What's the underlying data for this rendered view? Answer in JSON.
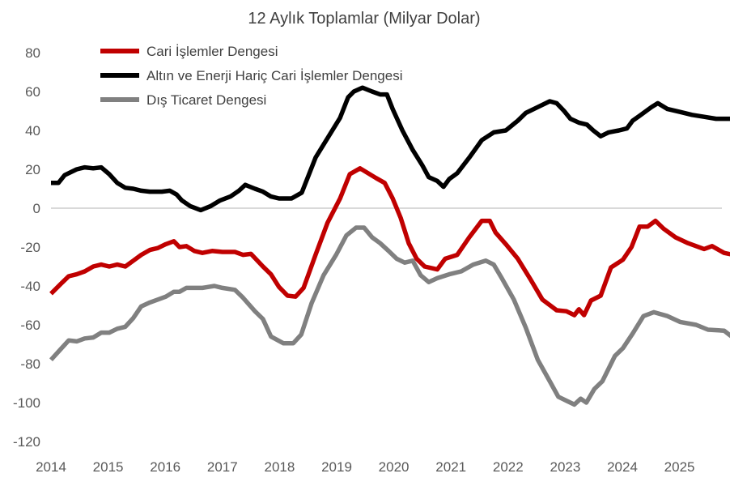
{
  "chart_data": {
    "type": "line",
    "title": "12 Aylık Toplamlar (Milyar Dolar)",
    "xlabel": "",
    "ylabel": "",
    "ylim": [
      -120,
      80
    ],
    "yticks": [
      "80",
      "60",
      "40",
      "20",
      "0",
      "-20",
      "-40",
      "-60",
      "-80",
      "-100",
      "-120"
    ],
    "ytick_values": [
      80,
      60,
      40,
      20,
      0,
      -20,
      -40,
      -60,
      -80,
      -100,
      -120
    ],
    "xticks": [
      "2014",
      "2015",
      "2016",
      "2017",
      "2018",
      "2019",
      "2020",
      "2021",
      "2022",
      "2023",
      "2024",
      "2025"
    ],
    "xtick_values": [
      2014,
      2015,
      2016,
      2017,
      2018,
      2019,
      2020,
      2021,
      2022,
      2023,
      2024,
      2025
    ],
    "legend_position": "top-left",
    "series": [
      {
        "name": "Cari İşlemler Dengesi",
        "color": "#C00000",
        "points": [
          [
            2014.0,
            -44
          ],
          [
            2014.17,
            -39
          ],
          [
            2014.31,
            -35
          ],
          [
            2014.45,
            -34
          ],
          [
            2014.59,
            -32.5
          ],
          [
            2014.74,
            -30
          ],
          [
            2014.88,
            -29
          ],
          [
            2015.02,
            -30
          ],
          [
            2015.16,
            -29
          ],
          [
            2015.3,
            -30
          ],
          [
            2015.44,
            -27
          ],
          [
            2015.58,
            -24
          ],
          [
            2015.73,
            -21.5
          ],
          [
            2015.87,
            -20.5
          ],
          [
            2016.01,
            -18.5
          ],
          [
            2016.15,
            -17
          ],
          [
            2016.25,
            -20
          ],
          [
            2016.37,
            -19.5
          ],
          [
            2016.51,
            -22
          ],
          [
            2016.65,
            -23
          ],
          [
            2016.82,
            -22
          ],
          [
            2017.0,
            -22.5
          ],
          [
            2017.22,
            -22.5
          ],
          [
            2017.36,
            -24
          ],
          [
            2017.5,
            -23.5
          ],
          [
            2017.71,
            -30
          ],
          [
            2017.85,
            -34
          ],
          [
            2017.99,
            -40.5
          ],
          [
            2018.14,
            -45
          ],
          [
            2018.28,
            -45.5
          ],
          [
            2018.42,
            -41
          ],
          [
            2018.63,
            -24
          ],
          [
            2018.84,
            -7.5
          ],
          [
            2019.06,
            5
          ],
          [
            2019.23,
            17.5
          ],
          [
            2019.41,
            20.5
          ],
          [
            2019.55,
            18
          ],
          [
            2019.69,
            15.5
          ],
          [
            2019.84,
            13
          ],
          [
            2019.98,
            5
          ],
          [
            2020.12,
            -5
          ],
          [
            2020.26,
            -18
          ],
          [
            2020.4,
            -26
          ],
          [
            2020.54,
            -30
          ],
          [
            2020.76,
            -31.5
          ],
          [
            2020.9,
            -26
          ],
          [
            2021.11,
            -24
          ],
          [
            2021.32,
            -15
          ],
          [
            2021.54,
            -6.5
          ],
          [
            2021.68,
            -6.5
          ],
          [
            2021.78,
            -12.5
          ],
          [
            2021.96,
            -18.5
          ],
          [
            2022.17,
            -26
          ],
          [
            2022.39,
            -36.5
          ],
          [
            2022.6,
            -47
          ],
          [
            2022.85,
            -52.5
          ],
          [
            2023.02,
            -53
          ],
          [
            2023.16,
            -55
          ],
          [
            2023.24,
            -52
          ],
          [
            2023.33,
            -55
          ],
          [
            2023.45,
            -47.5
          ],
          [
            2023.62,
            -45
          ],
          [
            2023.8,
            -30.5
          ],
          [
            2024.01,
            -26.5
          ],
          [
            2024.16,
            -20
          ],
          [
            2024.3,
            -9.5
          ],
          [
            2024.44,
            -9.5
          ],
          [
            2024.58,
            -6.5
          ],
          [
            2024.72,
            -10.5
          ],
          [
            2024.93,
            -15
          ],
          [
            2025.15,
            -18
          ],
          [
            2025.43,
            -21
          ],
          [
            2025.57,
            -19.5
          ],
          [
            2025.78,
            -23
          ],
          [
            2026.1,
            -25
          ]
        ]
      },
      {
        "name": "Altın ve Enerji Hariç Cari İşlemler Dengesi",
        "color": "#000000",
        "points": [
          [
            2014.0,
            13
          ],
          [
            2014.13,
            13
          ],
          [
            2014.24,
            17
          ],
          [
            2014.45,
            20
          ],
          [
            2014.59,
            21
          ],
          [
            2014.74,
            20.5
          ],
          [
            2014.88,
            21
          ],
          [
            2015.02,
            17.5
          ],
          [
            2015.16,
            13
          ],
          [
            2015.3,
            10.5
          ],
          [
            2015.44,
            10
          ],
          [
            2015.58,
            9
          ],
          [
            2015.73,
            8.5
          ],
          [
            2015.94,
            8.5
          ],
          [
            2016.08,
            9
          ],
          [
            2016.2,
            7
          ],
          [
            2016.29,
            4
          ],
          [
            2016.44,
            1
          ],
          [
            2016.62,
            -1
          ],
          [
            2016.79,
            1
          ],
          [
            2016.96,
            4
          ],
          [
            2017.14,
            6
          ],
          [
            2017.29,
            9
          ],
          [
            2017.4,
            12
          ],
          [
            2017.57,
            10
          ],
          [
            2017.71,
            8.5
          ],
          [
            2017.85,
            6
          ],
          [
            2017.99,
            5
          ],
          [
            2018.21,
            5
          ],
          [
            2018.39,
            8
          ],
          [
            2018.63,
            26
          ],
          [
            2018.84,
            36
          ],
          [
            2019.06,
            46.5
          ],
          [
            2019.2,
            57
          ],
          [
            2019.3,
            60
          ],
          [
            2019.45,
            62
          ],
          [
            2019.62,
            60
          ],
          [
            2019.76,
            58.5
          ],
          [
            2019.88,
            58.5
          ],
          [
            2019.98,
            51
          ],
          [
            2020.15,
            40
          ],
          [
            2020.33,
            30
          ],
          [
            2020.5,
            22
          ],
          [
            2020.61,
            16
          ],
          [
            2020.76,
            14
          ],
          [
            2020.87,
            11
          ],
          [
            2020.97,
            15
          ],
          [
            2021.11,
            18
          ],
          [
            2021.32,
            26
          ],
          [
            2021.54,
            35
          ],
          [
            2021.75,
            39
          ],
          [
            2021.96,
            40
          ],
          [
            2022.17,
            45
          ],
          [
            2022.31,
            49
          ],
          [
            2022.52,
            52
          ],
          [
            2022.73,
            55
          ],
          [
            2022.85,
            54
          ],
          [
            2022.98,
            50
          ],
          [
            2023.09,
            46
          ],
          [
            2023.24,
            44
          ],
          [
            2023.38,
            43
          ],
          [
            2023.49,
            40
          ],
          [
            2023.62,
            37
          ],
          [
            2023.76,
            39
          ],
          [
            2023.94,
            40
          ],
          [
            2024.08,
            41
          ],
          [
            2024.18,
            45
          ],
          [
            2024.3,
            47.5
          ],
          [
            2024.51,
            52
          ],
          [
            2024.62,
            54
          ],
          [
            2024.79,
            51
          ],
          [
            2025.01,
            49.5
          ],
          [
            2025.22,
            48
          ],
          [
            2025.43,
            47
          ],
          [
            2025.64,
            46
          ],
          [
            2025.93,
            46
          ],
          [
            2026.1,
            43
          ]
        ]
      },
      {
        "name": "Dış Ticaret Dengesi",
        "color": "#808080",
        "points": [
          [
            2014.0,
            -78
          ],
          [
            2014.17,
            -72.5
          ],
          [
            2014.31,
            -68
          ],
          [
            2014.45,
            -68.5
          ],
          [
            2014.59,
            -67
          ],
          [
            2014.74,
            -66.5
          ],
          [
            2014.88,
            -64
          ],
          [
            2015.02,
            -64
          ],
          [
            2015.16,
            -62
          ],
          [
            2015.3,
            -61
          ],
          [
            2015.44,
            -56.5
          ],
          [
            2015.58,
            -50.5
          ],
          [
            2015.73,
            -48.5
          ],
          [
            2015.87,
            -47
          ],
          [
            2016.01,
            -45.5
          ],
          [
            2016.15,
            -43
          ],
          [
            2016.25,
            -43
          ],
          [
            2016.37,
            -41
          ],
          [
            2016.65,
            -41
          ],
          [
            2016.86,
            -40
          ],
          [
            2017.0,
            -41
          ],
          [
            2017.22,
            -42
          ],
          [
            2017.36,
            -46
          ],
          [
            2017.57,
            -53
          ],
          [
            2017.71,
            -57
          ],
          [
            2017.85,
            -66
          ],
          [
            2018.07,
            -69.5
          ],
          [
            2018.24,
            -69.5
          ],
          [
            2018.38,
            -65
          ],
          [
            2018.56,
            -49
          ],
          [
            2018.77,
            -34.5
          ],
          [
            2018.99,
            -24
          ],
          [
            2019.17,
            -14
          ],
          [
            2019.34,
            -10
          ],
          [
            2019.48,
            -10
          ],
          [
            2019.62,
            -15
          ],
          [
            2019.76,
            -18
          ],
          [
            2019.91,
            -22
          ],
          [
            2020.05,
            -26
          ],
          [
            2020.19,
            -28
          ],
          [
            2020.33,
            -27
          ],
          [
            2020.47,
            -34.5
          ],
          [
            2020.61,
            -38
          ],
          [
            2020.76,
            -36
          ],
          [
            2020.97,
            -34
          ],
          [
            2021.18,
            -32.5
          ],
          [
            2021.39,
            -29
          ],
          [
            2021.61,
            -27
          ],
          [
            2021.75,
            -29
          ],
          [
            2021.89,
            -36
          ],
          [
            2022.1,
            -47
          ],
          [
            2022.31,
            -61.5
          ],
          [
            2022.52,
            -78
          ],
          [
            2022.73,
            -89
          ],
          [
            2022.88,
            -97
          ],
          [
            2023.02,
            -99
          ],
          [
            2023.16,
            -101
          ],
          [
            2023.27,
            -98
          ],
          [
            2023.37,
            -100
          ],
          [
            2023.51,
            -93
          ],
          [
            2023.65,
            -89
          ],
          [
            2023.87,
            -76
          ],
          [
            2024.01,
            -72
          ],
          [
            2024.18,
            -64.5
          ],
          [
            2024.37,
            -55.5
          ],
          [
            2024.55,
            -53.5
          ],
          [
            2024.79,
            -55.5
          ],
          [
            2025.01,
            -58.5
          ],
          [
            2025.29,
            -60
          ],
          [
            2025.5,
            -62.5
          ],
          [
            2025.78,
            -63
          ],
          [
            2026.0,
            -68
          ],
          [
            2026.1,
            -69
          ]
        ]
      }
    ]
  }
}
